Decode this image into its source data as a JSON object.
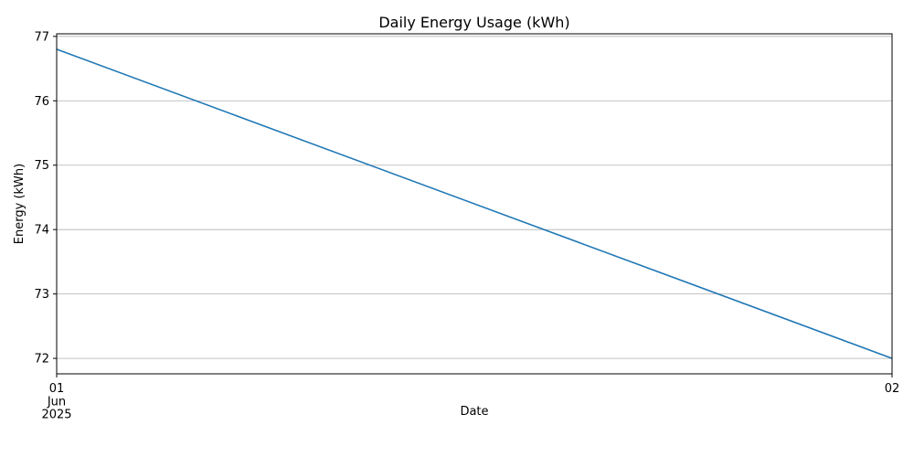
{
  "chart_data": {
    "type": "line",
    "title": "Daily Energy Usage (kWh)",
    "xlabel": "Date",
    "ylabel": "Energy (kWh)",
    "x": [
      "2025-06-01",
      "2025-06-02"
    ],
    "x_ticks": [
      {
        "value": "2025-06-01",
        "lines": [
          "01",
          "Jun",
          "2025"
        ]
      },
      {
        "value": "2025-06-02",
        "lines": [
          "02"
        ]
      }
    ],
    "series": [
      {
        "values": [
          76.8,
          72.0
        ],
        "color": "#1f77b4"
      }
    ],
    "ylim": [
      71.76,
      77.04
    ],
    "y_ticks": [
      72,
      73,
      74,
      75,
      76,
      77
    ],
    "grid": {
      "y": true,
      "x": false
    },
    "colors": {
      "grid": "#b0b0b0",
      "axis": "#000000"
    }
  }
}
